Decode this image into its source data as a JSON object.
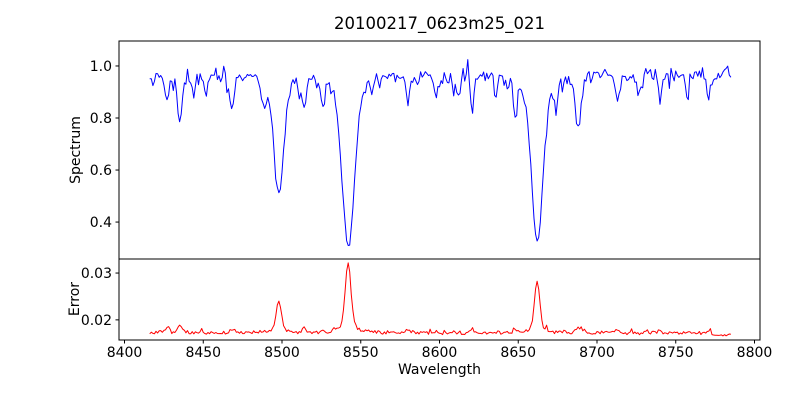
{
  "window": {
    "background": "#ffffff",
    "text_color": "#000000"
  },
  "chart_data": [
    {
      "type": "line",
      "panel": "spectrum",
      "title": "20100217_0623m25_021",
      "xlabel": "Wavelength",
      "ylabel": "Spectrum",
      "line_color": "#0000ff",
      "grid": false,
      "legend": "none",
      "xlim": [
        8396.5,
        8803.5
      ],
      "ylim": [
        0.258,
        1.096
      ],
      "x_ticks": {
        "values": [
          8400,
          8450,
          8500,
          8550,
          8600,
          8650,
          8700,
          8750,
          8800
        ],
        "labels": [
          "8400",
          "8450",
          "8500",
          "8550",
          "8600",
          "8650",
          "8700",
          "8750",
          "8800"
        ]
      },
      "y_ticks": {
        "values": [
          0.4,
          0.6,
          0.8,
          1.0
        ],
        "labels": [
          "0.4",
          "0.6",
          "0.8",
          "1.0"
        ]
      },
      "data_wavelength_range": [
        8416,
        8785
      ],
      "continuum_level": 0.97,
      "noise_band": [
        0.93,
        1.02
      ],
      "absorption_lines": [
        {
          "center": 8427,
          "depth": 0.1,
          "width": 1.1
        },
        {
          "center": 8435,
          "depth": 0.19,
          "width": 1.4
        },
        {
          "center": 8444,
          "depth": 0.08,
          "width": 1.0
        },
        {
          "center": 8452,
          "depth": 0.07,
          "width": 1.0
        },
        {
          "center": 8468,
          "depth": 0.12,
          "width": 1.3
        },
        {
          "center": 8489,
          "depth": 0.1,
          "width": 1.1
        },
        {
          "center": 8498.0,
          "depth": 0.46,
          "width": 2.8
        },
        {
          "center": 8514,
          "depth": 0.11,
          "width": 1.2
        },
        {
          "center": 8526,
          "depth": 0.08,
          "width": 1.0
        },
        {
          "center": 8542.1,
          "depth": 0.665,
          "width": 3.6
        },
        {
          "center": 8580,
          "depth": 0.1,
          "width": 1.1
        },
        {
          "center": 8598,
          "depth": 0.1,
          "width": 1.1
        },
        {
          "center": 8611,
          "depth": 0.07,
          "width": 1.0
        },
        {
          "center": 8621,
          "depth": 0.1,
          "width": 1.1
        },
        {
          "center": 8636,
          "depth": 0.07,
          "width": 1.0
        },
        {
          "center": 8648,
          "depth": 0.11,
          "width": 1.1
        },
        {
          "center": 8662.1,
          "depth": 0.645,
          "width": 3.4
        },
        {
          "center": 8674,
          "depth": 0.08,
          "width": 1.0
        },
        {
          "center": 8688,
          "depth": 0.2,
          "width": 1.6
        },
        {
          "center": 8713,
          "depth": 0.11,
          "width": 1.1
        },
        {
          "center": 8727,
          "depth": 0.07,
          "width": 1.0
        },
        {
          "center": 8740,
          "depth": 0.1,
          "width": 1.1
        },
        {
          "center": 8757,
          "depth": 0.08,
          "width": 1.0
        },
        {
          "center": 8771,
          "depth": 0.1,
          "width": 1.1
        }
      ]
    },
    {
      "type": "line",
      "panel": "error",
      "ylabel": "Error",
      "line_color": "#ff0000",
      "grid": false,
      "ylim": [
        0.0157,
        0.033
      ],
      "y_ticks": {
        "values": [
          0.02,
          0.03
        ],
        "labels": [
          "0.02",
          "0.03"
        ]
      },
      "baseline": 0.0172,
      "peaks": [
        {
          "center": 8427,
          "height": 0.0012,
          "width": 1.1
        },
        {
          "center": 8435,
          "height": 0.0018,
          "width": 1.2
        },
        {
          "center": 8468,
          "height": 0.0008,
          "width": 1.1
        },
        {
          "center": 8498,
          "height": 0.007,
          "width": 1.5
        },
        {
          "center": 8514,
          "height": 0.001,
          "width": 1.0
        },
        {
          "center": 8542,
          "height": 0.015,
          "width": 1.7
        },
        {
          "center": 8580,
          "height": 0.0008,
          "width": 1.0
        },
        {
          "center": 8598,
          "height": 0.0007,
          "width": 1.0
        },
        {
          "center": 8621,
          "height": 0.0008,
          "width": 1.0
        },
        {
          "center": 8648,
          "height": 0.0008,
          "width": 1.0
        },
        {
          "center": 8662,
          "height": 0.011,
          "width": 1.6
        },
        {
          "center": 8688,
          "height": 0.0011,
          "width": 1.0
        },
        {
          "center": 8713,
          "height": 0.0006,
          "width": 1.0
        },
        {
          "center": 8740,
          "height": 0.0007,
          "width": 1.0
        },
        {
          "center": 8771,
          "height": 0.0009,
          "width": 1.0
        }
      ]
    }
  ]
}
